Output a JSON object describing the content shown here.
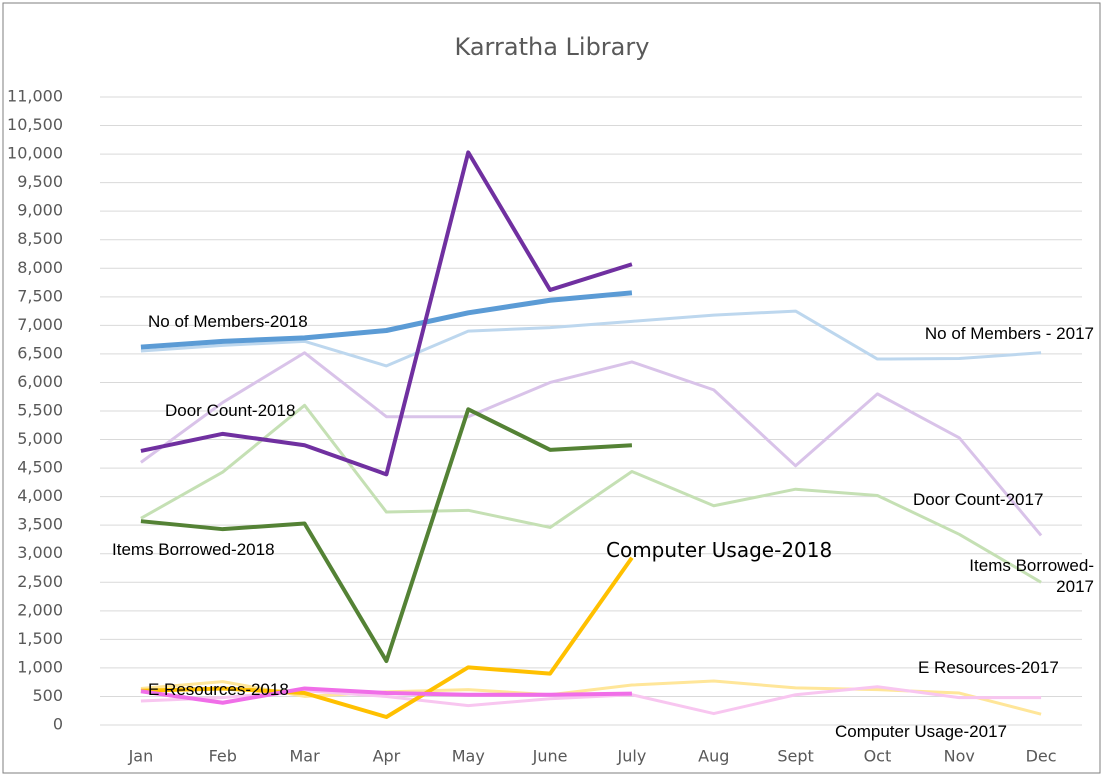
{
  "chart_data": {
    "type": "line",
    "title": "Karratha Library",
    "categories": [
      "Jan",
      "Feb",
      "Mar",
      "Apr",
      "May",
      "June",
      "July",
      "Aug",
      "Sept",
      "Oct",
      "Nov",
      "Dec"
    ],
    "ylim": [
      0,
      11000
    ],
    "yticks": [
      0,
      500,
      {
        "value": 1000,
        "label": "1,000"
      },
      {
        "value": 1500,
        "label": "1,500"
      },
      {
        "value": 2000,
        "label": "2,000"
      },
      {
        "value": 2500,
        "label": "2,500"
      },
      {
        "value": 3000,
        "label": "3,000"
      },
      {
        "value": 3500,
        "label": "3,500"
      },
      {
        "value": 4000,
        "label": "4,000"
      },
      {
        "value": 4500,
        "label": "4,500"
      },
      {
        "value": 5000,
        "label": "5,000"
      },
      {
        "value": 5500,
        "label": "5,500"
      },
      {
        "value": 6000,
        "label": "6,000"
      },
      {
        "value": 6500,
        "label": "6,500"
      },
      {
        "value": 7000,
        "label": "7,000"
      },
      {
        "value": 7500,
        "label": "7,500"
      },
      {
        "value": 8000,
        "label": "8,000"
      },
      {
        "value": 8500,
        "label": "8,500"
      },
      {
        "value": 9000,
        "label": "9,000"
      },
      {
        "value": 9500,
        "label": "9,500"
      },
      {
        "value": 10000,
        "label": "10,000"
      },
      {
        "value": 10500,
        "label": "10,500"
      },
      {
        "value": 11000,
        "label": "11,000"
      }
    ],
    "grid": true,
    "series": [
      {
        "name": "No of Members - 2017",
        "color": "#bdd7ee",
        "values": [
          6550,
          6650,
          6720,
          6290,
          6900,
          6960,
          7070,
          7180,
          7250,
          6410,
          6420,
          6520
        ]
      },
      {
        "name": "Door Count-2017",
        "color": "#d9c3e9",
        "values": [
          4600,
          5650,
          6520,
          5400,
          5400,
          6000,
          6360,
          5870,
          4540,
          5800,
          5030,
          3320
        ]
      },
      {
        "name": "Items Borrowed-2017",
        "color": "#c5e0b4",
        "values": [
          3620,
          4430,
          5600,
          3730,
          3760,
          3460,
          4440,
          3840,
          4130,
          4020,
          3340,
          2500
        ]
      },
      {
        "name": "Computer Usage-2017",
        "color": "#ffe699",
        "values": [
          640,
          760,
          500,
          580,
          620,
          530,
          700,
          770,
          650,
          620,
          560,
          190
        ]
      },
      {
        "name": "E Resources-2017",
        "color": "#f8c6f0",
        "values": [
          420,
          480,
          600,
          500,
          340,
          460,
          530,
          200,
          530,
          670,
          480,
          480
        ]
      },
      {
        "name": "No of Members-2018",
        "color": "#5b9bd5",
        "values": [
          6620,
          6720,
          6780,
          6910,
          7220,
          7440,
          7570,
          null,
          null,
          null,
          null,
          null
        ]
      },
      {
        "name": "Door Count-2018",
        "color": "#7030a0",
        "values": [
          4800,
          5100,
          4900,
          4390,
          10030,
          7620,
          8070,
          null,
          null,
          null,
          null,
          null
        ]
      },
      {
        "name": "Items Borrowed-2018",
        "color": "#548235",
        "values": [
          3570,
          3430,
          3530,
          1120,
          5530,
          4820,
          4900,
          null,
          null,
          null,
          null,
          null
        ]
      },
      {
        "name": "Computer Usage-2018",
        "color": "#ffc000",
        "values": [
          600,
          640,
          560,
          140,
          1010,
          900,
          2930,
          null,
          null,
          null,
          null,
          null
        ]
      },
      {
        "name": "E Resources-2018",
        "color": "#f06ee8",
        "values": [
          590,
          390,
          640,
          560,
          530,
          530,
          550,
          null,
          null,
          null,
          null,
          null
        ]
      }
    ]
  }
}
